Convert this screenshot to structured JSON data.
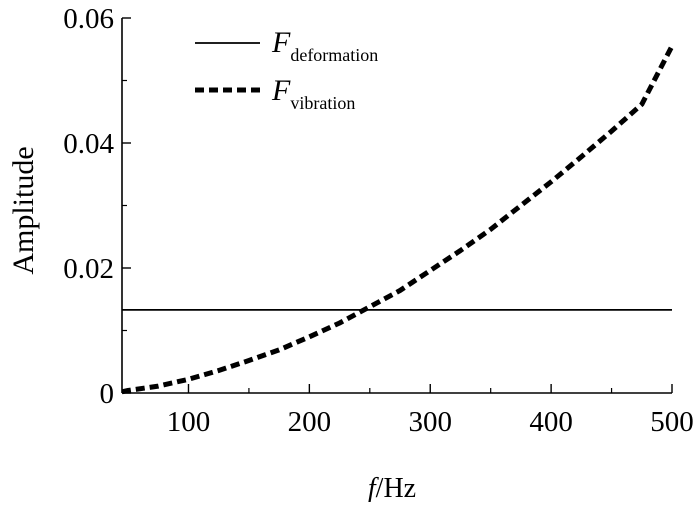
{
  "chart_data": {
    "type": "line",
    "xlabel": {
      "italic": "f",
      "rest": "/Hz"
    },
    "ylabel": "Amplitude",
    "xlim": [
      45,
      500
    ],
    "ylim": [
      0,
      0.06
    ],
    "x_ticks": [
      100,
      200,
      300,
      400,
      500
    ],
    "x_tick_labels": [
      "100",
      "200",
      "300",
      "400",
      "500"
    ],
    "y_ticks": [
      0,
      0.02,
      0.04,
      0.06
    ],
    "y_tick_labels": [
      "0",
      "0.02",
      "0.04",
      "0.06"
    ],
    "grid": false,
    "legend_position": "top-left",
    "series": [
      {
        "name": "F",
        "name_subscript": "deformation",
        "style": "solid",
        "color": "#000000",
        "x": [
          45,
          500
        ],
        "y": [
          0.0133,
          0.0133
        ]
      },
      {
        "name": "F",
        "name_subscript": "vibration",
        "style": "dashed",
        "color": "#000000",
        "x": [
          45,
          50,
          75,
          100,
          125,
          150,
          175,
          200,
          225,
          250,
          275,
          300,
          325,
          350,
          375,
          400,
          425,
          450,
          475,
          500
        ],
        "y": [
          0.0002,
          0.0004,
          0.0011,
          0.0022,
          0.0036,
          0.0052,
          0.0069,
          0.009,
          0.0112,
          0.0138,
          0.0164,
          0.0196,
          0.0228,
          0.0262,
          0.03,
          0.0338,
          0.0378,
          0.0419,
          0.0462,
          0.0555
        ]
      }
    ]
  }
}
